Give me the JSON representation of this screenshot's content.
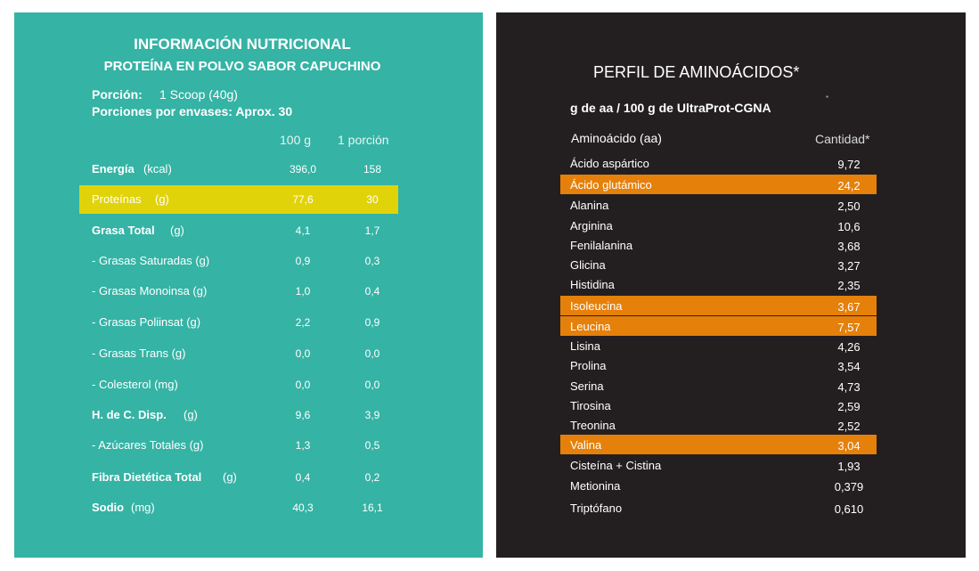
{
  "nutrition": {
    "title": "INFORMACIÓN NUTRICIONAL",
    "subtitle": "PROTEÍNA EN POLVO SABOR CAPUCHINO",
    "portion_label": "Porción:",
    "portion_value": "1 Scoop (40g)",
    "servings": "Porciones por envases: Aprox. 30",
    "col_100g": "100 g",
    "col_portion": "1 porción",
    "rows": [
      {
        "name": "Energía",
        "unit": "(kcal)",
        "v100": "396,0",
        "vpor": "158"
      },
      {
        "name": "Proteínas",
        "unit": "(g)",
        "v100": "77,6",
        "vpor": "30"
      },
      {
        "name": "Grasa Total",
        "unit": "(g)",
        "v100": "4,1",
        "vpor": "1,7"
      },
      {
        "name": "- Grasas Saturadas (g)",
        "unit": "",
        "v100": "0,9",
        "vpor": "0,3"
      },
      {
        "name": "- Grasas Monoinsa (g)",
        "unit": "",
        "v100": "1,0",
        "vpor": "0,4"
      },
      {
        "name": "- Grasas Poliinsat (g)",
        "unit": "",
        "v100": "2,2",
        "vpor": "0,9"
      },
      {
        "name": "- Grasas Trans (g)",
        "unit": "",
        "v100": "0,0",
        "vpor": "0,0"
      },
      {
        "name": "- Colesterol (mg)",
        "unit": "",
        "v100": "0,0",
        "vpor": "0,0"
      },
      {
        "name": "H. de C. Disp.",
        "unit": "(g)",
        "v100": "9,6",
        "vpor": "3,9"
      },
      {
        "name": "- Azúcares Totales (g)",
        "unit": "",
        "v100": "1,3",
        "vpor": "0,5"
      },
      {
        "name": "Fibra Dietética Total",
        "unit": "(g)",
        "v100": "0,4",
        "vpor": "0,2"
      },
      {
        "name": "Sodio",
        "unit": "(mg)",
        "v100": "40,3",
        "vpor": "16,1"
      }
    ]
  },
  "amino": {
    "title": "PERFIL DE AMINOÁCIDOS*",
    "subtitle": "g de aa / 100 g de UltraProt-CGNA",
    "dot": "*",
    "col_name": "Aminoácido (aa)",
    "col_qty": "Cantidad*",
    "rows": [
      {
        "name": "Ácido aspártico",
        "qty": "9,72"
      },
      {
        "name": "Ácido glutámico",
        "qty": "24,2"
      },
      {
        "name": "Alanina",
        "qty": "2,50"
      },
      {
        "name": "Arginina",
        "qty": "10,6"
      },
      {
        "name": "Fenilalanina",
        "qty": "3,68"
      },
      {
        "name": "Glicina",
        "qty": "3,27"
      },
      {
        "name": "Histidina",
        "qty": "2,35"
      },
      {
        "name": "Isoleucina",
        "qty": "3,67"
      },
      {
        "name": "Leucina",
        "qty": "7,57"
      },
      {
        "name": "Lisina",
        "qty": "4,26"
      },
      {
        "name": "Prolina",
        "qty": "3,54"
      },
      {
        "name": "Serina",
        "qty": "4,73"
      },
      {
        "name": "Tirosina",
        "qty": "2,59"
      },
      {
        "name": "Treonina",
        "qty": "2,52"
      },
      {
        "name": "Valina",
        "qty": "3,04"
      },
      {
        "name": "Cisteína + Cistina",
        "qty": "1,93"
      },
      {
        "name": "Metionina",
        "qty": "0,379"
      },
      {
        "name": "Triptófano",
        "qty": "0,610"
      }
    ]
  },
  "colors": {
    "teal_panel": "#35b3a5",
    "dark_panel": "#231f20",
    "yellow_highlight": "#e1d30a",
    "orange_highlight": "#e5800a"
  }
}
